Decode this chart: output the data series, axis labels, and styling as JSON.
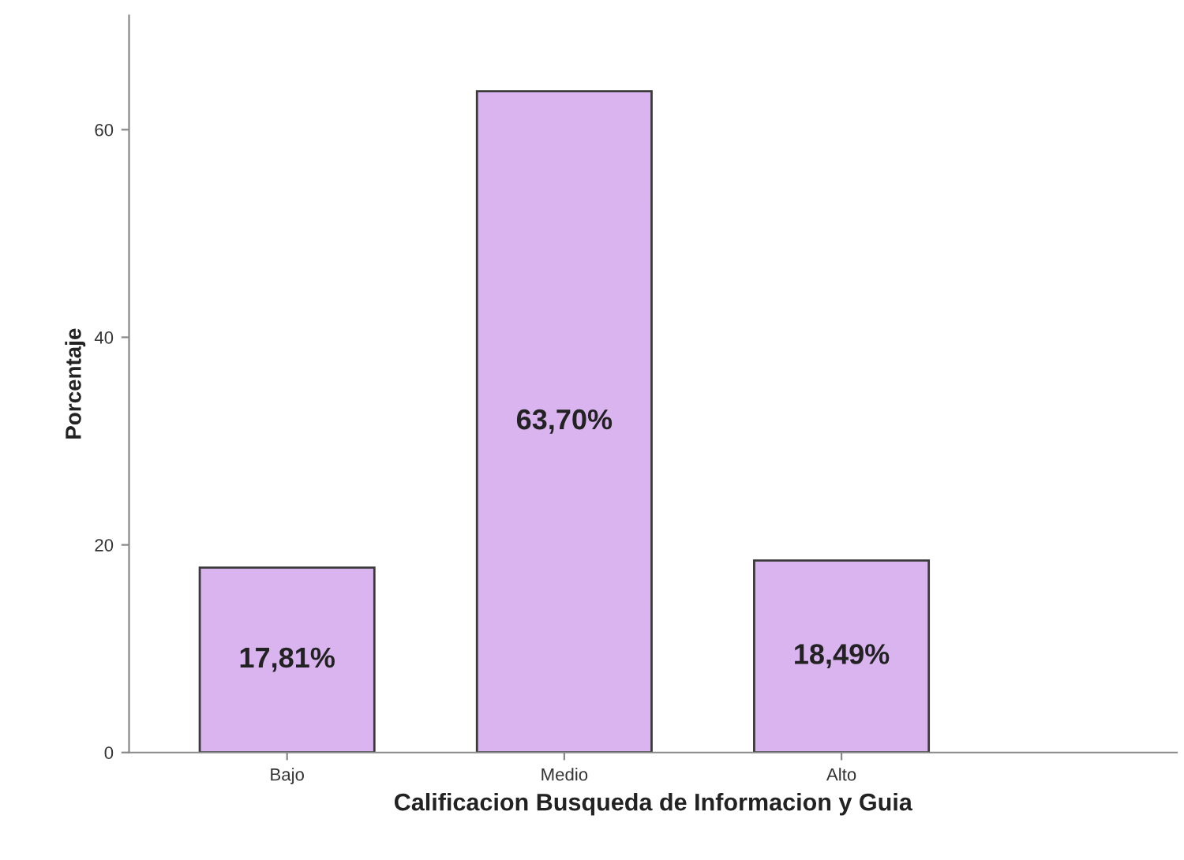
{
  "chart_data": {
    "type": "bar",
    "xlabel": "Calificacion Busqueda de Informacion y Guia",
    "ylabel": "Porcentaje",
    "categories": [
      "Bajo",
      "Medio",
      "Alto"
    ],
    "values": [
      17.81,
      63.7,
      18.49
    ],
    "value_labels": [
      "17,81%",
      "63,70%",
      "18,49%"
    ],
    "color": "#d9b4ef",
    "ylim": [
      0,
      71
    ],
    "yticks": [
      0,
      20,
      40,
      60
    ],
    "grid": false,
    "legend": false
  }
}
